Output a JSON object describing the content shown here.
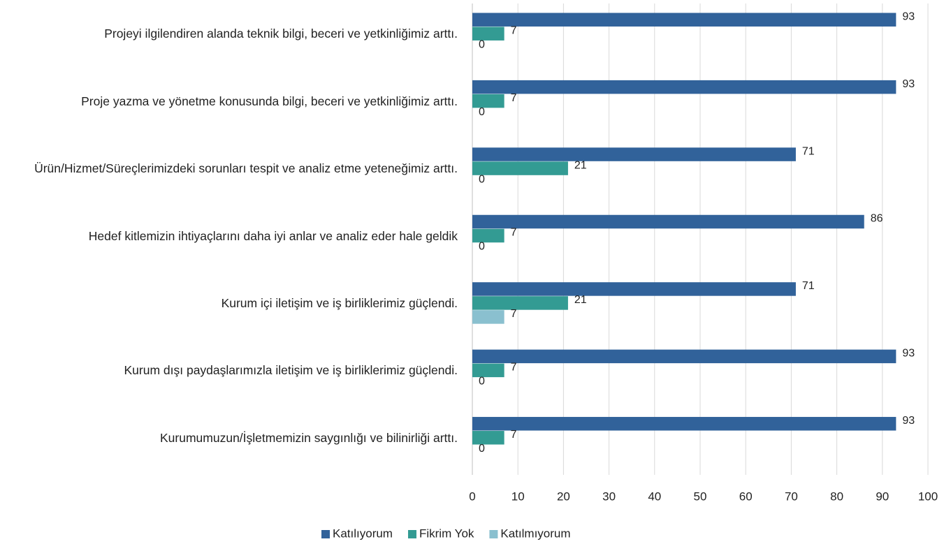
{
  "chart_data": {
    "type": "hbar",
    "categories": [
      "Projeyi ilgilendiren alanda teknik bilgi, beceri ve yetkinliğimiz arttı.",
      "Proje yazma ve yönetme konusunda bilgi, beceri ve yetkinliğimiz arttı.",
      "Ürün/Hizmet/Süreçlerimizdeki sorunları tespit ve analiz etme yeteneğimiz arttı.",
      "Hedef kitlemizin ihtiyaçlarını daha iyi anlar ve analiz eder hale geldik",
      "Kurum içi iletişim ve iş birliklerimiz güçlendi.",
      "Kurum dışı paydaşlarımızla iletişim ve iş birliklerimiz güçlendi.",
      "Kurumumuzun/İşletmemizin saygınlığı ve bilinirliği arttı."
    ],
    "series": [
      {
        "name": "Katılıyorum",
        "color": "#31629a",
        "values": [
          93,
          93,
          71,
          86,
          71,
          93,
          93
        ]
      },
      {
        "name": "Fikrim Yok",
        "color": "#339b93",
        "values": [
          7,
          7,
          21,
          7,
          21,
          7,
          7
        ]
      },
      {
        "name": "Katılmıyorum",
        "color": "#8ac0cf",
        "values": [
          0,
          0,
          0,
          0,
          7,
          0,
          0
        ]
      }
    ],
    "xlim": [
      0,
      100
    ],
    "xticks": [
      0,
      10,
      20,
      30,
      40,
      50,
      60,
      70,
      80,
      90,
      100
    ],
    "grid": true,
    "legend": "bottom"
  }
}
